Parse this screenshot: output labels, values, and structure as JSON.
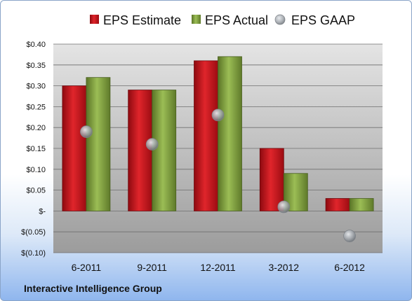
{
  "chart_data": {
    "type": "bar",
    "categories": [
      "6-2011",
      "9-2011",
      "12-2011",
      "3-2012",
      "6-2012"
    ],
    "series": [
      {
        "name": "EPS Estimate",
        "type": "bar",
        "values": [
          0.3,
          0.29,
          0.36,
          0.15,
          0.03
        ]
      },
      {
        "name": "EPS Actual",
        "type": "bar",
        "values": [
          0.32,
          0.29,
          0.37,
          0.09,
          0.03
        ]
      },
      {
        "name": "EPS GAAP",
        "type": "marker",
        "values": [
          0.19,
          0.16,
          0.23,
          0.01,
          -0.06
        ]
      }
    ],
    "ylim": [
      -0.1,
      0.4
    ],
    "yticks": [
      -0.1,
      -0.05,
      0,
      0.05,
      0.1,
      0.15,
      0.2,
      0.25,
      0.3,
      0.35,
      0.4
    ],
    "ytick_labels": [
      "$(0.10)",
      "$(0.05)",
      "$-",
      "$0.05",
      "$0.10",
      "$0.15",
      "$0.20",
      "$0.25",
      "$0.30",
      "$0.35",
      "$0.40"
    ],
    "grid": true,
    "legend_position": "top",
    "colors": {
      "estimate": "#c8141c",
      "actual": "#7e9e3a",
      "gaap": "#9aa0a6"
    }
  },
  "footer": {
    "company": "Interactive Intelligence Group"
  }
}
